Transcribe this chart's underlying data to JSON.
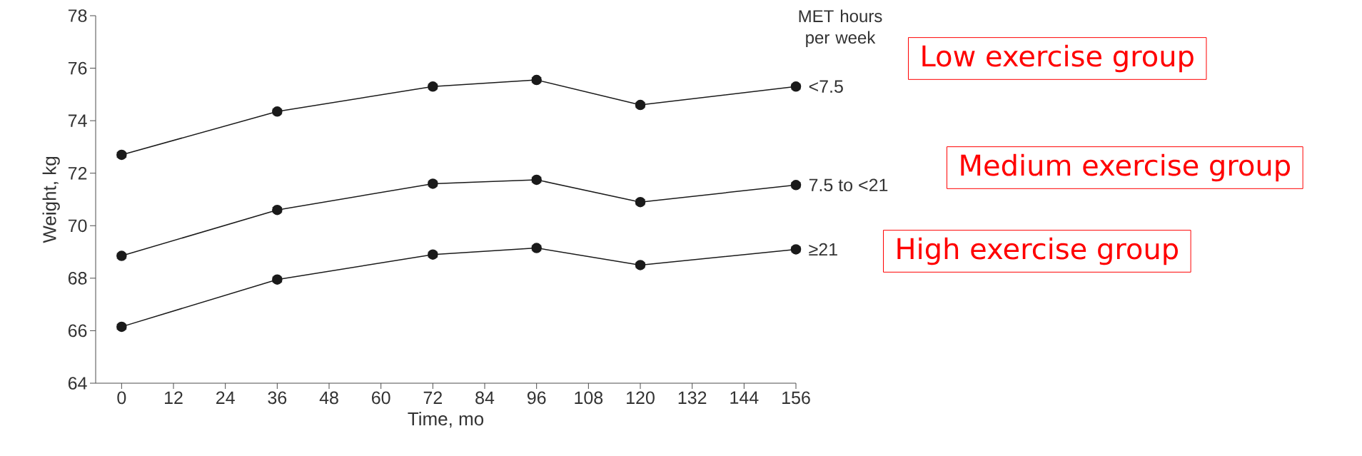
{
  "chart_data": {
    "type": "line",
    "xlabel": "Time, mo",
    "ylabel": "Weight, kg",
    "legend_title": "MET hours per week",
    "x": [
      0,
      36,
      72,
      96,
      120,
      156
    ],
    "series": [
      {
        "name": "<7.5",
        "color": "#1a1a1a",
        "values": [
          72.7,
          74.35,
          75.3,
          75.55,
          74.6,
          75.3
        ],
        "errors": [
          0.1,
          0.1,
          0.1,
          0.1,
          0.1,
          0.1
        ]
      },
      {
        "name": "7.5 to <21",
        "color": "#1a1a1a",
        "values": [
          68.85,
          70.6,
          71.6,
          71.75,
          70.9,
          71.55
        ],
        "errors": [
          0.1,
          0.1,
          0.1,
          0.1,
          0.1,
          0.1
        ]
      },
      {
        "name": "≥21",
        "color": "#1a1a1a",
        "values": [
          66.15,
          67.95,
          68.9,
          69.15,
          68.5,
          69.1
        ],
        "errors": [
          0.1,
          0.1,
          0.1,
          0.1,
          0.1,
          0.1
        ]
      }
    ],
    "xlim": [
      -6,
      156
    ],
    "ylim": [
      64,
      78
    ],
    "xticks": [
      0,
      12,
      24,
      36,
      48,
      60,
      72,
      84,
      96,
      108,
      120,
      132,
      144,
      156
    ],
    "yticks": [
      64,
      66,
      68,
      70,
      72,
      74,
      76,
      78
    ],
    "marker": "circle",
    "line_style": "solid",
    "annotations": [
      "Low exercise group",
      "Medium exercise group",
      "High exercise group"
    ]
  }
}
